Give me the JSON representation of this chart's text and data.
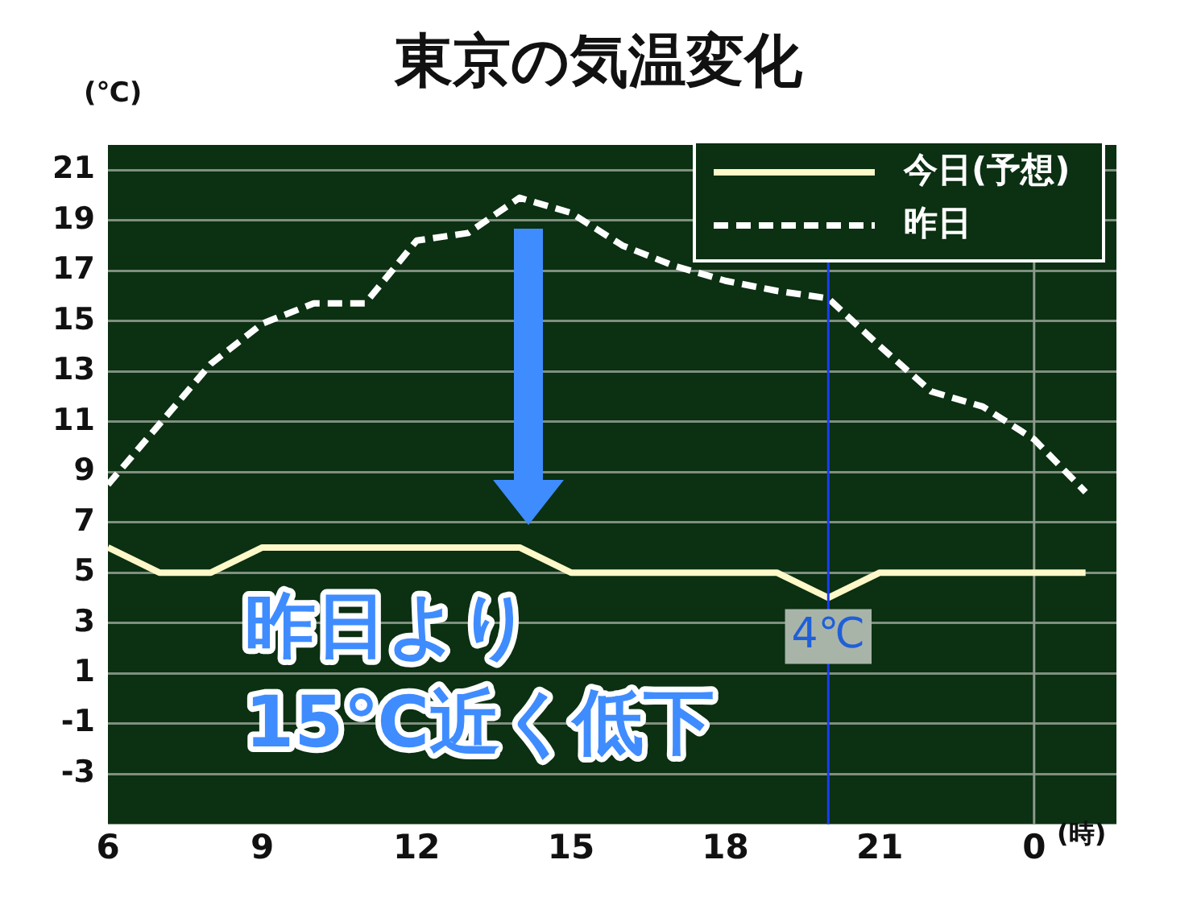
{
  "chart_data": {
    "type": "line",
    "title": "東京の気温変化",
    "ylabel": "(℃)",
    "xlabel": "(時)",
    "categories": [
      "6",
      null,
      null,
      "9",
      null,
      null,
      "12",
      null,
      null,
      "15",
      null,
      null,
      "18",
      null,
      null,
      "21",
      null,
      null,
      "0",
      null
    ],
    "series": [
      {
        "name": "今日(予想)",
        "color": "#fff8c8",
        "line_style": "solid",
        "values": [
          6,
          5,
          5,
          6,
          6,
          6,
          6,
          6,
          6,
          5,
          5,
          5,
          5,
          5,
          4,
          5,
          5,
          5,
          5,
          5
        ]
      },
      {
        "name": "昨日",
        "color": "#ffffff",
        "line_style": "dashed",
        "values": [
          8.5,
          10.9,
          13.3,
          14.9,
          15.7,
          15.7,
          18.2,
          18.5,
          19.9,
          19.3,
          18.0,
          17.2,
          16.6,
          16.2,
          15.9,
          14.0,
          12.2,
          11.6,
          10.3,
          8.2
        ]
      }
    ],
    "ylim": [
      -5,
      22
    ],
    "yticks": [
      -3,
      -1,
      1,
      3,
      5,
      7,
      9,
      11,
      13,
      15,
      17,
      19,
      21
    ],
    "ref_lines": [
      {
        "axis": "x",
        "value": "0",
        "color": "#8a9a8a"
      }
    ],
    "annotations": [
      {
        "text": "4℃",
        "y": 4
      },
      "昨日より\n15℃近く低下"
    ],
    "grid": "y",
    "legend": "top right",
    "marker": "none"
  }
}
